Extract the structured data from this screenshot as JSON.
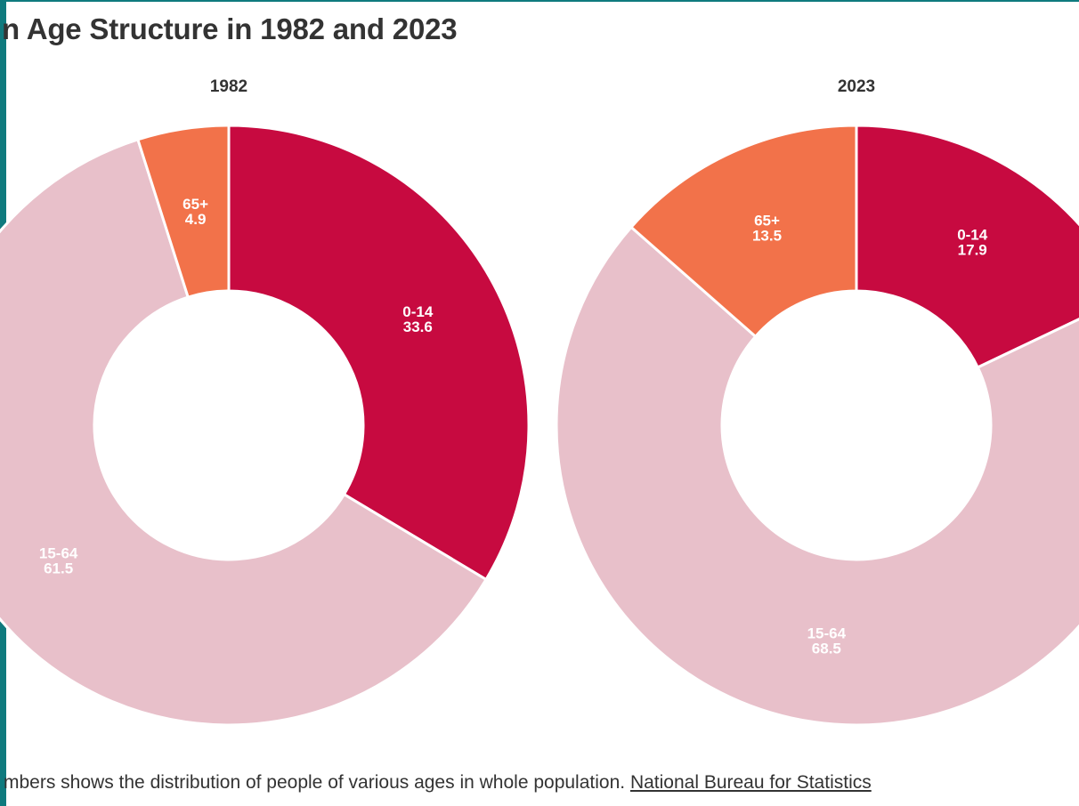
{
  "title": "n Age Structure in 1982 and 2023",
  "colors": {
    "0-14": "#c70a40",
    "15-64": "#e8c0ca",
    "65+": "#f2724a",
    "frame": "#0f7a7e"
  },
  "chart_data": [
    {
      "type": "pie",
      "variant": "donut",
      "title": "1982",
      "slices": [
        {
          "label": "0-14",
          "value": 33.6
        },
        {
          "label": "15-64",
          "value": 61.5
        },
        {
          "label": "65+",
          "value": 4.9
        }
      ]
    },
    {
      "type": "pie",
      "variant": "donut",
      "title": "2023",
      "slices": [
        {
          "label": "0-14",
          "value": 17.9
        },
        {
          "label": "15-64",
          "value": 68.5
        },
        {
          "label": "65+",
          "value": 13.5
        }
      ]
    }
  ],
  "footer": {
    "text": "mbers shows the distribution of people of various ages in whole population.",
    "source_link": "National Bureau for Statistics"
  }
}
